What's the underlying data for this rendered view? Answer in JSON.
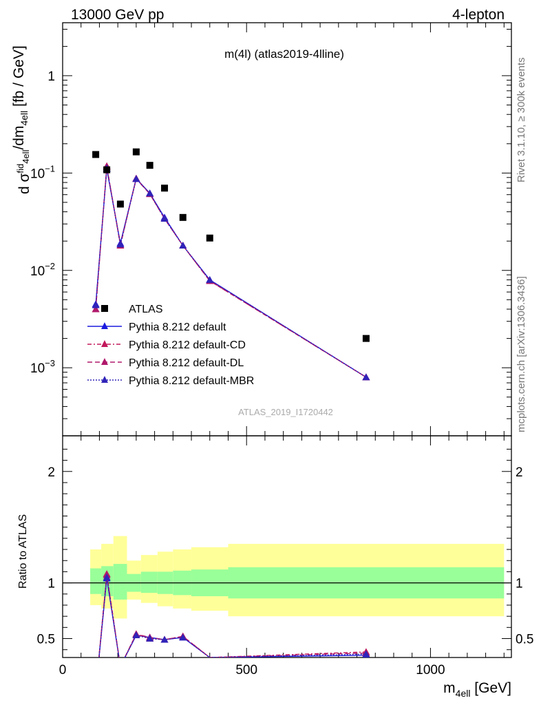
{
  "header": {
    "left": "13000 GeV pp",
    "right": "4-lepton"
  },
  "side_text": {
    "top": "Rivet 3.1.10, ≥ 300k events",
    "bottom": "mcplots.cern.ch [arXiv:1306.3436]"
  },
  "plot_title": "m(4l) (atlas2019-4lline)",
  "watermark": "ATLAS_2019_I1720442",
  "ylabel_main": "d σᶠⁱd4ell/dm4ell [fb / GeV]",
  "ylabel_ratio": "Ratio to ATLAS",
  "xlabel": "m4ell [GeV]",
  "legend": {
    "atlas": "ATLAS",
    "default": "Pythia 8.212 default",
    "cd": "Pythia 8.212 default-CD",
    "dl": "Pythia 8.212 default-DL",
    "mbr": "Pythia 8.212 default-MBR"
  },
  "colors": {
    "default": "#1a1adf",
    "cd": "#c2185b",
    "dl": "#b0186b",
    "mbr": "#3023b8",
    "band_inner": "#99ff99",
    "band_outer": "#ffff99"
  },
  "chart_data": {
    "type": "scatter",
    "xlim": [
      0,
      1220
    ],
    "main": {
      "yscale": "log",
      "ylim": [
        0.0002,
        3.5
      ],
      "yticks": [
        {
          "v": 1,
          "label": "1"
        },
        {
          "v": 0.1,
          "label": "10",
          "exp": "−1"
        },
        {
          "v": 0.01,
          "label": "10",
          "exp": "−2"
        },
        {
          "v": 0.001,
          "label": "10",
          "exp": "−3"
        }
      ]
    },
    "ratio": {
      "ylim": [
        0.33,
        2.32
      ],
      "yticks": [
        {
          "v": 0.5,
          "label": "0.5"
        },
        {
          "v": 1,
          "label": "1"
        },
        {
          "v": 2,
          "label": "2"
        }
      ]
    },
    "xticks": [
      {
        "v": 0,
        "label": "0"
      },
      {
        "v": 500,
        "label": "500"
      },
      {
        "v": 1000,
        "label": "1000"
      }
    ],
    "atlas": {
      "x": [
        90,
        120,
        157,
        200,
        237,
        277,
        327,
        400,
        825
      ],
      "y": [
        0.155,
        0.108,
        0.048,
        0.165,
        0.12,
        0.07,
        0.035,
        0.0215,
        0.002
      ]
    },
    "bins": [
      {
        "lo": 75,
        "hi": 105,
        "inner": [
          0.9,
          1.13
        ],
        "outer": [
          0.8,
          1.3
        ]
      },
      {
        "lo": 105,
        "hi": 138,
        "inner": [
          0.88,
          1.15
        ],
        "outer": [
          0.77,
          1.35
        ]
      },
      {
        "lo": 138,
        "hi": 175,
        "inner": [
          0.85,
          1.17
        ],
        "outer": [
          0.68,
          1.42
        ]
      },
      {
        "lo": 175,
        "hi": 213,
        "inner": [
          0.92,
          1.08
        ],
        "outer": [
          0.85,
          1.2
        ]
      },
      {
        "lo": 213,
        "hi": 258,
        "inner": [
          0.91,
          1.1
        ],
        "outer": [
          0.82,
          1.25
        ]
      },
      {
        "lo": 258,
        "hi": 300,
        "inner": [
          0.9,
          1.1
        ],
        "outer": [
          0.79,
          1.28
        ]
      },
      {
        "lo": 300,
        "hi": 350,
        "inner": [
          0.89,
          1.11
        ],
        "outer": [
          0.77,
          1.3
        ]
      },
      {
        "lo": 350,
        "hi": 450,
        "inner": [
          0.88,
          1.12
        ],
        "outer": [
          0.75,
          1.32
        ]
      },
      {
        "lo": 450,
        "hi": 1200,
        "inner": [
          0.86,
          1.14
        ],
        "outer": [
          0.7,
          1.35
        ]
      }
    ],
    "series": [
      {
        "name": "Pythia 8.212 default",
        "key": "default",
        "dash": "",
        "x": [
          90,
          120,
          157,
          200,
          237,
          277,
          327,
          400,
          825
        ],
        "y": [
          0.0045,
          0.11,
          0.019,
          0.088,
          0.062,
          0.035,
          0.018,
          0.008,
          0.0008
        ],
        "ratio": [
          0.03,
          1.04,
          0.25,
          0.53,
          0.51,
          0.49,
          0.51,
          0.33,
          0.35
        ]
      },
      {
        "name": "Pythia 8.212 default-CD",
        "key": "cd",
        "dash": "6 3 2 3",
        "x": [
          90,
          120,
          157,
          200,
          237,
          277,
          327,
          400,
          825
        ],
        "y": [
          0.004,
          0.118,
          0.018,
          0.088,
          0.061,
          0.034,
          0.018,
          0.0078,
          0.0008
        ],
        "ratio": [
          0.03,
          1.08,
          0.25,
          0.54,
          0.5,
          0.49,
          0.52,
          0.33,
          0.38
        ]
      },
      {
        "name": "Pythia 8.212 default-DL",
        "key": "dl",
        "dash": "7 4",
        "x": [
          90,
          120,
          157,
          200,
          237,
          277,
          327,
          400,
          825
        ],
        "y": [
          0.004,
          0.116,
          0.0185,
          0.087,
          0.061,
          0.034,
          0.018,
          0.0078,
          0.0008
        ],
        "ratio": [
          0.03,
          1.07,
          0.25,
          0.54,
          0.51,
          0.49,
          0.52,
          0.33,
          0.37
        ]
      },
      {
        "name": "Pythia 8.212 default-MBR",
        "key": "mbr",
        "dash": "2 2",
        "x": [
          90,
          120,
          157,
          200,
          237,
          277,
          327,
          400,
          825
        ],
        "y": [
          0.0044,
          0.112,
          0.0185,
          0.087,
          0.062,
          0.034,
          0.018,
          0.008,
          0.0008
        ],
        "ratio": [
          0.03,
          1.05,
          0.25,
          0.53,
          0.5,
          0.49,
          0.51,
          0.33,
          0.36
        ]
      }
    ]
  }
}
